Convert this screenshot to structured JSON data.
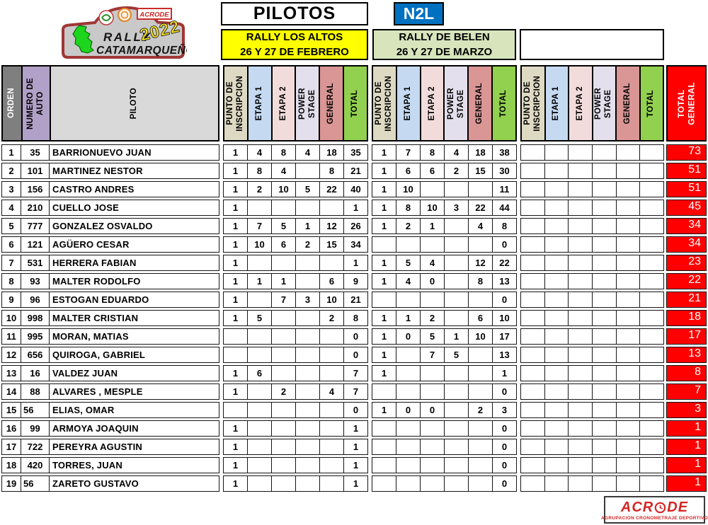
{
  "logo": {
    "line1": "RALLY",
    "line2": "CATAMARQUEÑO",
    "year": "2022",
    "badge": "ACRODE"
  },
  "header": {
    "title": "PILOTOS",
    "class_badge": "N2L"
  },
  "events": [
    {
      "line1": "RALLY LOS ALTOS",
      "line2": "26 Y 27 DE FEBRERO",
      "header_bg": "#ffff00"
    },
    {
      "line1": "RALLY DE BELEN",
      "line2": "26 Y 27 DE MARZO",
      "header_bg": "#d8e4bc"
    },
    {
      "line1": "",
      "line2": "",
      "header_bg": "#ffffff"
    }
  ],
  "columns": {
    "orden": "ORDEN",
    "numero_auto": "NUMERO DE\nAUTO",
    "piloto": "PILOTO",
    "event_columns": [
      "PUNTO DE\nINSCRIPCION",
      "ETAPA 1",
      "ETAPA 2",
      "POWER\nSTAGE",
      "GENERAL",
      "TOTAL"
    ],
    "total_general": "TOTAL\nGENERAL"
  },
  "colors": {
    "orden_bg": "#7f7f7f",
    "auto_bg": "#b1a0c7",
    "piloto_bg": "#d9d9d9",
    "event_cell_bgs": [
      "#ddd9c3",
      "#c5d9f1",
      "#f2dcdb",
      "#e4dfec",
      "#d99694",
      "#92d050"
    ],
    "total_general_bg": "#fe0000",
    "badge_bg": "#0070c0"
  },
  "rows": [
    {
      "orden": "1",
      "auto": "35",
      "piloto": "BARRIONUEVO JUAN",
      "event1": [
        "1",
        "4",
        "8",
        "4",
        "18",
        "35"
      ],
      "event2": [
        "1",
        "7",
        "8",
        "4",
        "18",
        "38"
      ],
      "event3": [
        "",
        "",
        "",
        "",
        "",
        ""
      ],
      "total_general": "73"
    },
    {
      "orden": "2",
      "auto": "101",
      "piloto": "MARTINEZ NESTOR",
      "event1": [
        "1",
        "8",
        "4",
        "",
        "8",
        "21"
      ],
      "event2": [
        "1",
        "6",
        "6",
        "2",
        "15",
        "30"
      ],
      "event3": [
        "",
        "",
        "",
        "",
        "",
        ""
      ],
      "total_general": "51"
    },
    {
      "orden": "3",
      "auto": "156",
      "piloto": "CASTRO ANDRES",
      "event1": [
        "1",
        "2",
        "10",
        "5",
        "22",
        "40"
      ],
      "event2": [
        "1",
        "10",
        "",
        "",
        "",
        "11"
      ],
      "event3": [
        "",
        "",
        "",
        "",
        "",
        ""
      ],
      "total_general": "51"
    },
    {
      "orden": "4",
      "auto": "210",
      "piloto": "CUELLO JOSE",
      "event1": [
        "1",
        "",
        "",
        "",
        "",
        "1"
      ],
      "event2": [
        "1",
        "8",
        "10",
        "3",
        "22",
        "44"
      ],
      "event3": [
        "",
        "",
        "",
        "",
        "",
        ""
      ],
      "total_general": "45"
    },
    {
      "orden": "5",
      "auto": "777",
      "piloto": "GONZALEZ OSVALDO",
      "event1": [
        "1",
        "7",
        "5",
        "1",
        "12",
        "26"
      ],
      "event2": [
        "1",
        "2",
        "1",
        "",
        "4",
        "8"
      ],
      "event3": [
        "",
        "",
        "",
        "",
        "",
        ""
      ],
      "total_general": "34"
    },
    {
      "orden": "6",
      "auto": "121",
      "piloto": "AGÜERO CESAR",
      "event1": [
        "1",
        "10",
        "6",
        "2",
        "15",
        "34"
      ],
      "event2": [
        "",
        "",
        "",
        "",
        "",
        "0"
      ],
      "event3": [
        "",
        "",
        "",
        "",
        "",
        ""
      ],
      "total_general": "34"
    },
    {
      "orden": "7",
      "auto": "531",
      "piloto": "HERRERA FABIAN",
      "event1": [
        "1",
        "",
        "",
        "",
        "",
        "1"
      ],
      "event2": [
        "1",
        "5",
        "4",
        "",
        "12",
        "22"
      ],
      "event3": [
        "",
        "",
        "",
        "",
        "",
        ""
      ],
      "total_general": "23"
    },
    {
      "orden": "8",
      "auto": "93",
      "piloto": "MALTER RODOLFO",
      "event1": [
        "1",
        "1",
        "1",
        "",
        "6",
        "9"
      ],
      "event2": [
        "1",
        "4",
        "0",
        "",
        "8",
        "13"
      ],
      "event3": [
        "",
        "",
        "",
        "",
        "",
        ""
      ],
      "total_general": "22"
    },
    {
      "orden": "9",
      "auto": "96",
      "piloto": "ESTOGAN EDUARDO",
      "event1": [
        "1",
        "",
        "7",
        "3",
        "10",
        "21"
      ],
      "event2": [
        "",
        "",
        "",
        "",
        "",
        "0"
      ],
      "event3": [
        "",
        "",
        "",
        "",
        "",
        ""
      ],
      "total_general": "21"
    },
    {
      "orden": "10",
      "auto": "998",
      "piloto": "MALTER CRISTIAN",
      "event1": [
        "1",
        "5",
        "",
        "",
        "2",
        "8"
      ],
      "event2": [
        "1",
        "1",
        "2",
        "",
        "6",
        "10"
      ],
      "event3": [
        "",
        "",
        "",
        "",
        "",
        ""
      ],
      "total_general": "18"
    },
    {
      "orden": "11",
      "auto": "995",
      "piloto": "MORAN, MATIAS",
      "event1": [
        "",
        "",
        "",
        "",
        "",
        "0"
      ],
      "event2": [
        "1",
        "0",
        "5",
        "1",
        "10",
        "17"
      ],
      "event3": [
        "",
        "",
        "",
        "",
        "",
        ""
      ],
      "total_general": "17"
    },
    {
      "orden": "12",
      "auto": "656",
      "piloto": "QUIROGA, GABRIEL",
      "event1": [
        "",
        "",
        "",
        "",
        "",
        "0"
      ],
      "event2": [
        "1",
        "",
        "7",
        "5",
        "",
        "13"
      ],
      "event3": [
        "",
        "",
        "",
        "",
        "",
        ""
      ],
      "total_general": "13"
    },
    {
      "orden": "13",
      "auto": "16",
      "piloto": "VALDEZ JUAN",
      "event1": [
        "1",
        "6",
        "",
        "",
        "",
        "7"
      ],
      "event2": [
        "1",
        "",
        "",
        "",
        "",
        "1"
      ],
      "event3": [
        "",
        "",
        "",
        "",
        "",
        ""
      ],
      "total_general": "8"
    },
    {
      "orden": "14",
      "auto": "88",
      "piloto": "ALVARES , MESPLE",
      "event1": [
        "1",
        "",
        "2",
        "",
        "4",
        "7"
      ],
      "event2": [
        "",
        "",
        "",
        "",
        "",
        "0"
      ],
      "event3": [
        "",
        "",
        "",
        "",
        "",
        ""
      ],
      "total_general": "7"
    },
    {
      "orden": "15",
      "auto": "56",
      "auto_align": "left",
      "piloto": "ELIAS, OMAR",
      "event1": [
        "",
        "",
        "",
        "",
        "",
        "0"
      ],
      "event2": [
        "1",
        "0",
        "0",
        "",
        "2",
        "3"
      ],
      "event3": [
        "",
        "",
        "",
        "",
        "",
        ""
      ],
      "total_general": "3"
    },
    {
      "orden": "16",
      "auto": "99",
      "piloto": "ARMOYA JOAQUIN",
      "event1": [
        "1",
        "",
        "",
        "",
        "",
        "1"
      ],
      "event2": [
        "",
        "",
        "",
        "",
        "",
        "0"
      ],
      "event3": [
        "",
        "",
        "",
        "",
        "",
        ""
      ],
      "total_general": "1"
    },
    {
      "orden": "17",
      "auto": "722",
      "piloto": "PEREYRA AGUSTIN",
      "event1": [
        "1",
        "",
        "",
        "",
        "",
        "1"
      ],
      "event2": [
        "",
        "",
        "",
        "",
        "",
        "0"
      ],
      "event3": [
        "",
        "",
        "",
        "",
        "",
        ""
      ],
      "total_general": "1"
    },
    {
      "orden": "18",
      "auto": "420",
      "piloto": "TORRES, JUAN",
      "event1": [
        "1",
        "",
        "",
        "",
        "",
        "1"
      ],
      "event2": [
        "",
        "",
        "",
        "",
        "",
        "0"
      ],
      "event3": [
        "",
        "",
        "",
        "",
        "",
        ""
      ],
      "total_general": "1"
    },
    {
      "orden": "19",
      "auto": "56",
      "auto_align": "left",
      "piloto": "ZARETO GUSTAVO",
      "event1": [
        "1",
        "",
        "",
        "",
        "",
        "1"
      ],
      "event2": [
        "",
        "",
        "",
        "",
        "",
        "0"
      ],
      "event3": [
        "",
        "",
        "",
        "",
        "",
        ""
      ],
      "total_general": "1"
    }
  ],
  "footer": {
    "brand_left": "ACR",
    "brand_right": "DE",
    "tagline": "AGRUPACION CRONOMETRAJE DEPORTIVO"
  }
}
